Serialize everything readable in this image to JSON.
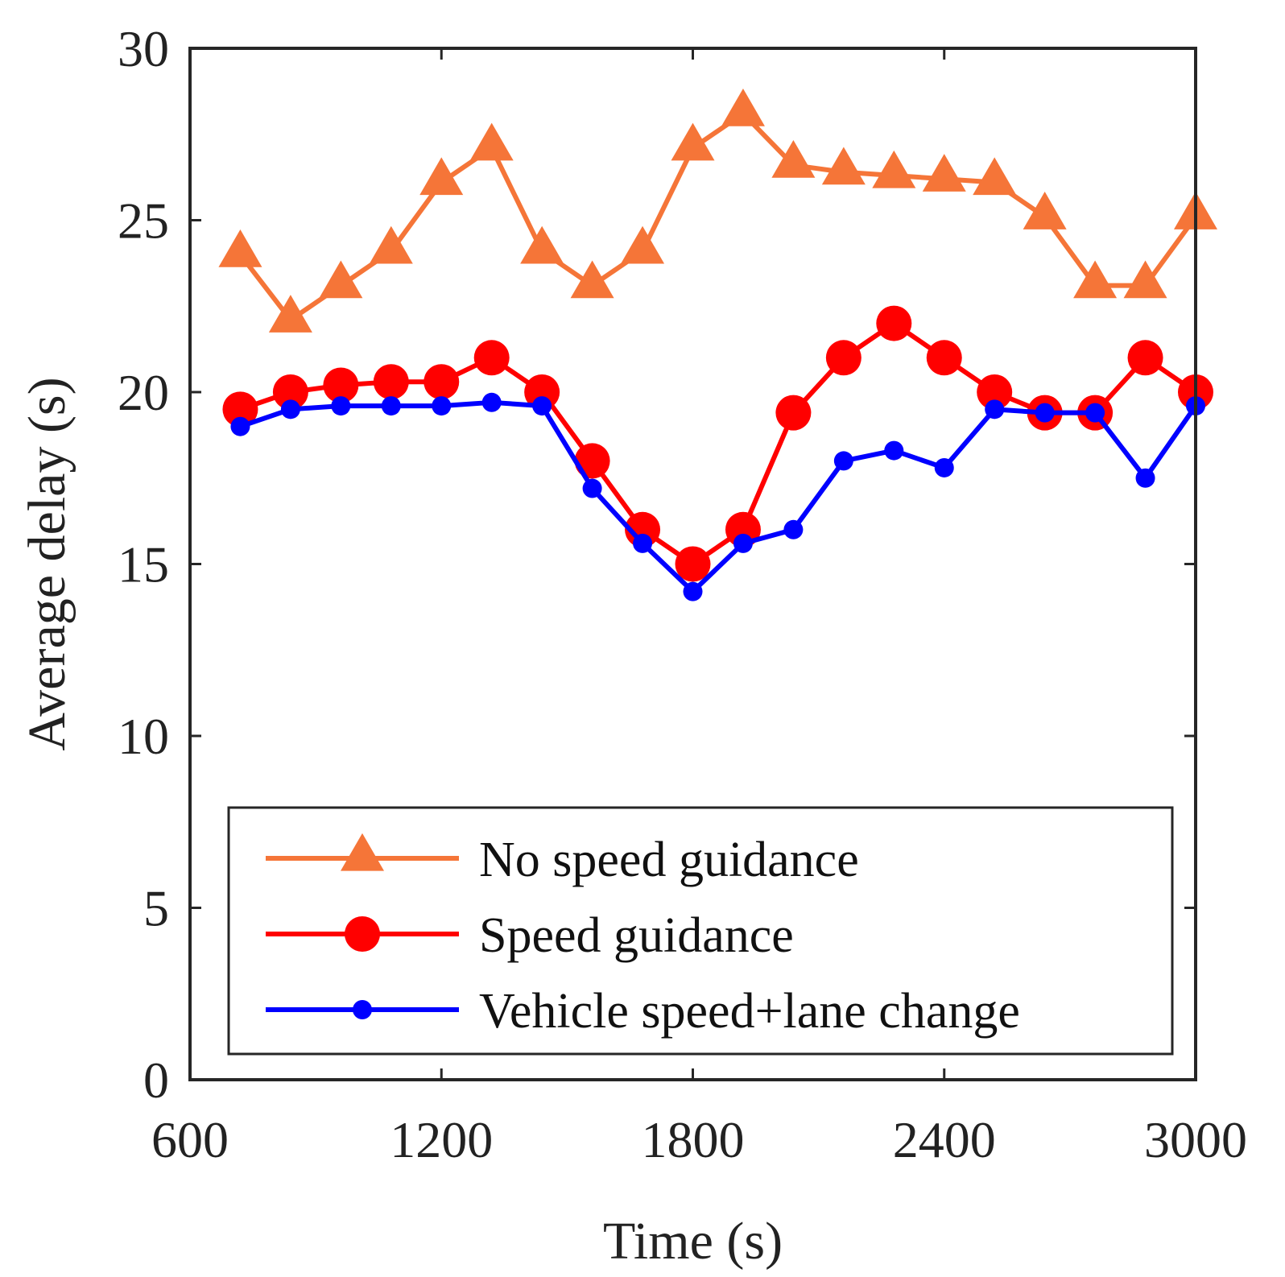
{
  "chart_data": {
    "type": "line",
    "xlabel": "Time (s)",
    "ylabel": "Average delay (s)",
    "xlim": [
      600,
      3000
    ],
    "ylim": [
      0,
      30
    ],
    "xticks": [
      600,
      1200,
      1800,
      2400,
      3000
    ],
    "yticks": [
      0,
      5,
      10,
      15,
      20,
      25,
      30
    ],
    "grid": false,
    "legend_position": "bottom-center",
    "x": [
      720,
      840,
      960,
      1080,
      1200,
      1320,
      1440,
      1560,
      1680,
      1800,
      1920,
      2040,
      2160,
      2280,
      2400,
      2520,
      2640,
      2760,
      2880,
      3000
    ],
    "series": [
      {
        "name": "No speed guidance",
        "color": "#f57538",
        "marker": "triangle",
        "values": [
          24,
          22.1,
          23.1,
          24.1,
          26.1,
          27.1,
          24.1,
          23.1,
          24.1,
          27.1,
          28.1,
          26.6,
          26.4,
          26.3,
          26.2,
          26.1,
          25.1,
          23.1,
          23.1,
          25.1
        ]
      },
      {
        "name": "Speed guidance",
        "color": "#ff0000",
        "marker": "circle",
        "values": [
          19.5,
          20,
          20.2,
          20.3,
          20.3,
          21,
          20,
          18,
          16,
          15,
          16,
          19.4,
          21,
          22,
          21,
          20,
          19.4,
          19.4,
          21,
          20
        ]
      },
      {
        "name": "Vehicle speed+lane change",
        "color": "#0000ff",
        "marker": "dot",
        "values": [
          19,
          19.5,
          19.6,
          19.6,
          19.6,
          19.7,
          19.6,
          17.2,
          15.6,
          14.2,
          15.6,
          16,
          18,
          18.3,
          17.8,
          19.5,
          19.4,
          19.4,
          17.5,
          19.6
        ]
      }
    ]
  }
}
